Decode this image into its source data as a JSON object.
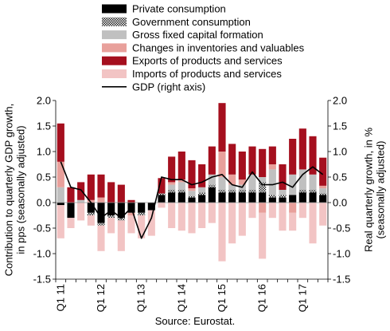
{
  "chart_data": {
    "type": "bar",
    "subtype": "stacked bar with line on secondary axis",
    "ylabel_left": "Contribution to quarterly GDP growth, in pps (seasonally adjusted)",
    "ylabel_right": "Real quarterly growth, in % (seasonally adjusted)",
    "ylim": [
      -1.5,
      2.0
    ],
    "y_ticks": [
      -1.5,
      -1.0,
      -0.5,
      0.0,
      0.5,
      1.0,
      1.5,
      2.0
    ],
    "y_tick_labels": [
      "-1.5",
      "-1.0",
      "-0.5",
      "0.0",
      "0.5",
      "1.0",
      "1.5",
      "2.0"
    ],
    "legend_position": "top",
    "grid": false,
    "x_tick_labels": [
      "Q1 11",
      "Q1 12",
      "Q1 13",
      "Q1 14",
      "Q1 15",
      "Q1 16",
      "Q1 17"
    ],
    "categories": [
      "2011Q1",
      "2011Q2",
      "2011Q3",
      "2011Q4",
      "2012Q1",
      "2012Q2",
      "2012Q3",
      "2012Q4",
      "2013Q1",
      "2013Q2",
      "2013Q3",
      "2013Q4",
      "2014Q1",
      "2014Q2",
      "2014Q3",
      "2014Q4",
      "2015Q1",
      "2015Q2",
      "2015Q3",
      "2015Q4",
      "2016Q1",
      "2016Q2",
      "2016Q3",
      "2016Q4",
      "2017Q1",
      "2017Q2",
      "2017Q3"
    ],
    "series": [
      {
        "name": "Private consumption",
        "key": "private",
        "kind": "bar",
        "color": "#000000",
        "values": [
          -0.05,
          -0.3,
          0.0,
          -0.2,
          -0.4,
          -0.25,
          -0.3,
          -0.2,
          -0.2,
          -0.15,
          0.15,
          0.2,
          0.2,
          0.1,
          0.15,
          0.3,
          0.2,
          0.2,
          0.2,
          0.2,
          0.2,
          0.1,
          0.1,
          0.15,
          0.2,
          0.2,
          0.15
        ]
      },
      {
        "name": "Government consumption",
        "key": "government",
        "kind": "bar",
        "color": "#555555",
        "values": [
          0.0,
          0.0,
          0.0,
          -0.05,
          -0.05,
          -0.05,
          -0.05,
          0.0,
          -0.05,
          0.0,
          0.03,
          0.05,
          0.05,
          0.03,
          0.05,
          0.05,
          0.05,
          0.05,
          0.05,
          0.05,
          0.2,
          0.05,
          0.05,
          0.0,
          0.05,
          0.05,
          0.03
        ]
      },
      {
        "name": "Gross fixed capital formation",
        "key": "gfcf",
        "kind": "bar",
        "color": "#c0c0c0",
        "values": [
          0.3,
          0.0,
          0.05,
          0.0,
          0.0,
          0.0,
          0.0,
          0.0,
          0.0,
          0.0,
          0.0,
          0.1,
          0.15,
          0.1,
          0.1,
          0.2,
          0.25,
          0.1,
          0.1,
          0.3,
          0.1,
          0.5,
          0.1,
          0.4,
          0.4,
          0.3,
          0.1
        ]
      },
      {
        "name": "Changes in inventories and valuables",
        "key": "inventories",
        "kind": "bar",
        "color": "#e8a09b",
        "values": [
          0.5,
          0.0,
          0.0,
          0.05,
          0.1,
          0.0,
          0.0,
          -0.05,
          0.0,
          0.0,
          0.0,
          0.05,
          0.05,
          0.05,
          0.0,
          0.0,
          0.5,
          0.2,
          0.1,
          0.0,
          -0.2,
          0.1,
          0.0,
          -0.2,
          0.0,
          0.0,
          0.05
        ]
      },
      {
        "name": "Exports of products and services",
        "key": "exports",
        "kind": "bar",
        "color": "#a50f1e",
        "values": [
          0.75,
          0.3,
          0.35,
          0.5,
          0.45,
          0.4,
          0.35,
          0.05,
          0.0,
          0.0,
          0.3,
          0.5,
          0.55,
          0.55,
          0.45,
          0.55,
          0.95,
          0.6,
          0.55,
          0.55,
          0.55,
          0.35,
          0.5,
          0.7,
          0.8,
          0.75,
          0.55
        ]
      },
      {
        "name": "Imports of products and services",
        "key": "imports",
        "kind": "bar",
        "color": "#f2c4c4",
        "values": [
          -0.65,
          -0.2,
          -0.35,
          -0.2,
          -0.5,
          -0.3,
          -0.6,
          -0.35,
          -0.45,
          -0.5,
          -0.1,
          -0.5,
          -0.55,
          -0.6,
          -0.5,
          -0.4,
          -1.15,
          -0.8,
          -0.65,
          -0.3,
          -0.9,
          -0.3,
          -0.55,
          -0.35,
          -0.3,
          -0.8,
          -0.45
        ]
      },
      {
        "name": "GDP (right axis)",
        "key": "gdp",
        "kind": "line",
        "color": "#000000",
        "values": [
          0.8,
          0.3,
          0.25,
          0.0,
          -0.3,
          -0.15,
          -0.3,
          -0.1,
          -0.7,
          -0.3,
          0.5,
          0.45,
          0.45,
          0.35,
          0.4,
          0.5,
          0.55,
          0.35,
          0.3,
          0.6,
          0.35,
          0.35,
          0.4,
          0.3,
          0.55,
          0.7,
          0.55
        ]
      }
    ]
  },
  "footer": {
    "source": "Source: Eurostat."
  }
}
